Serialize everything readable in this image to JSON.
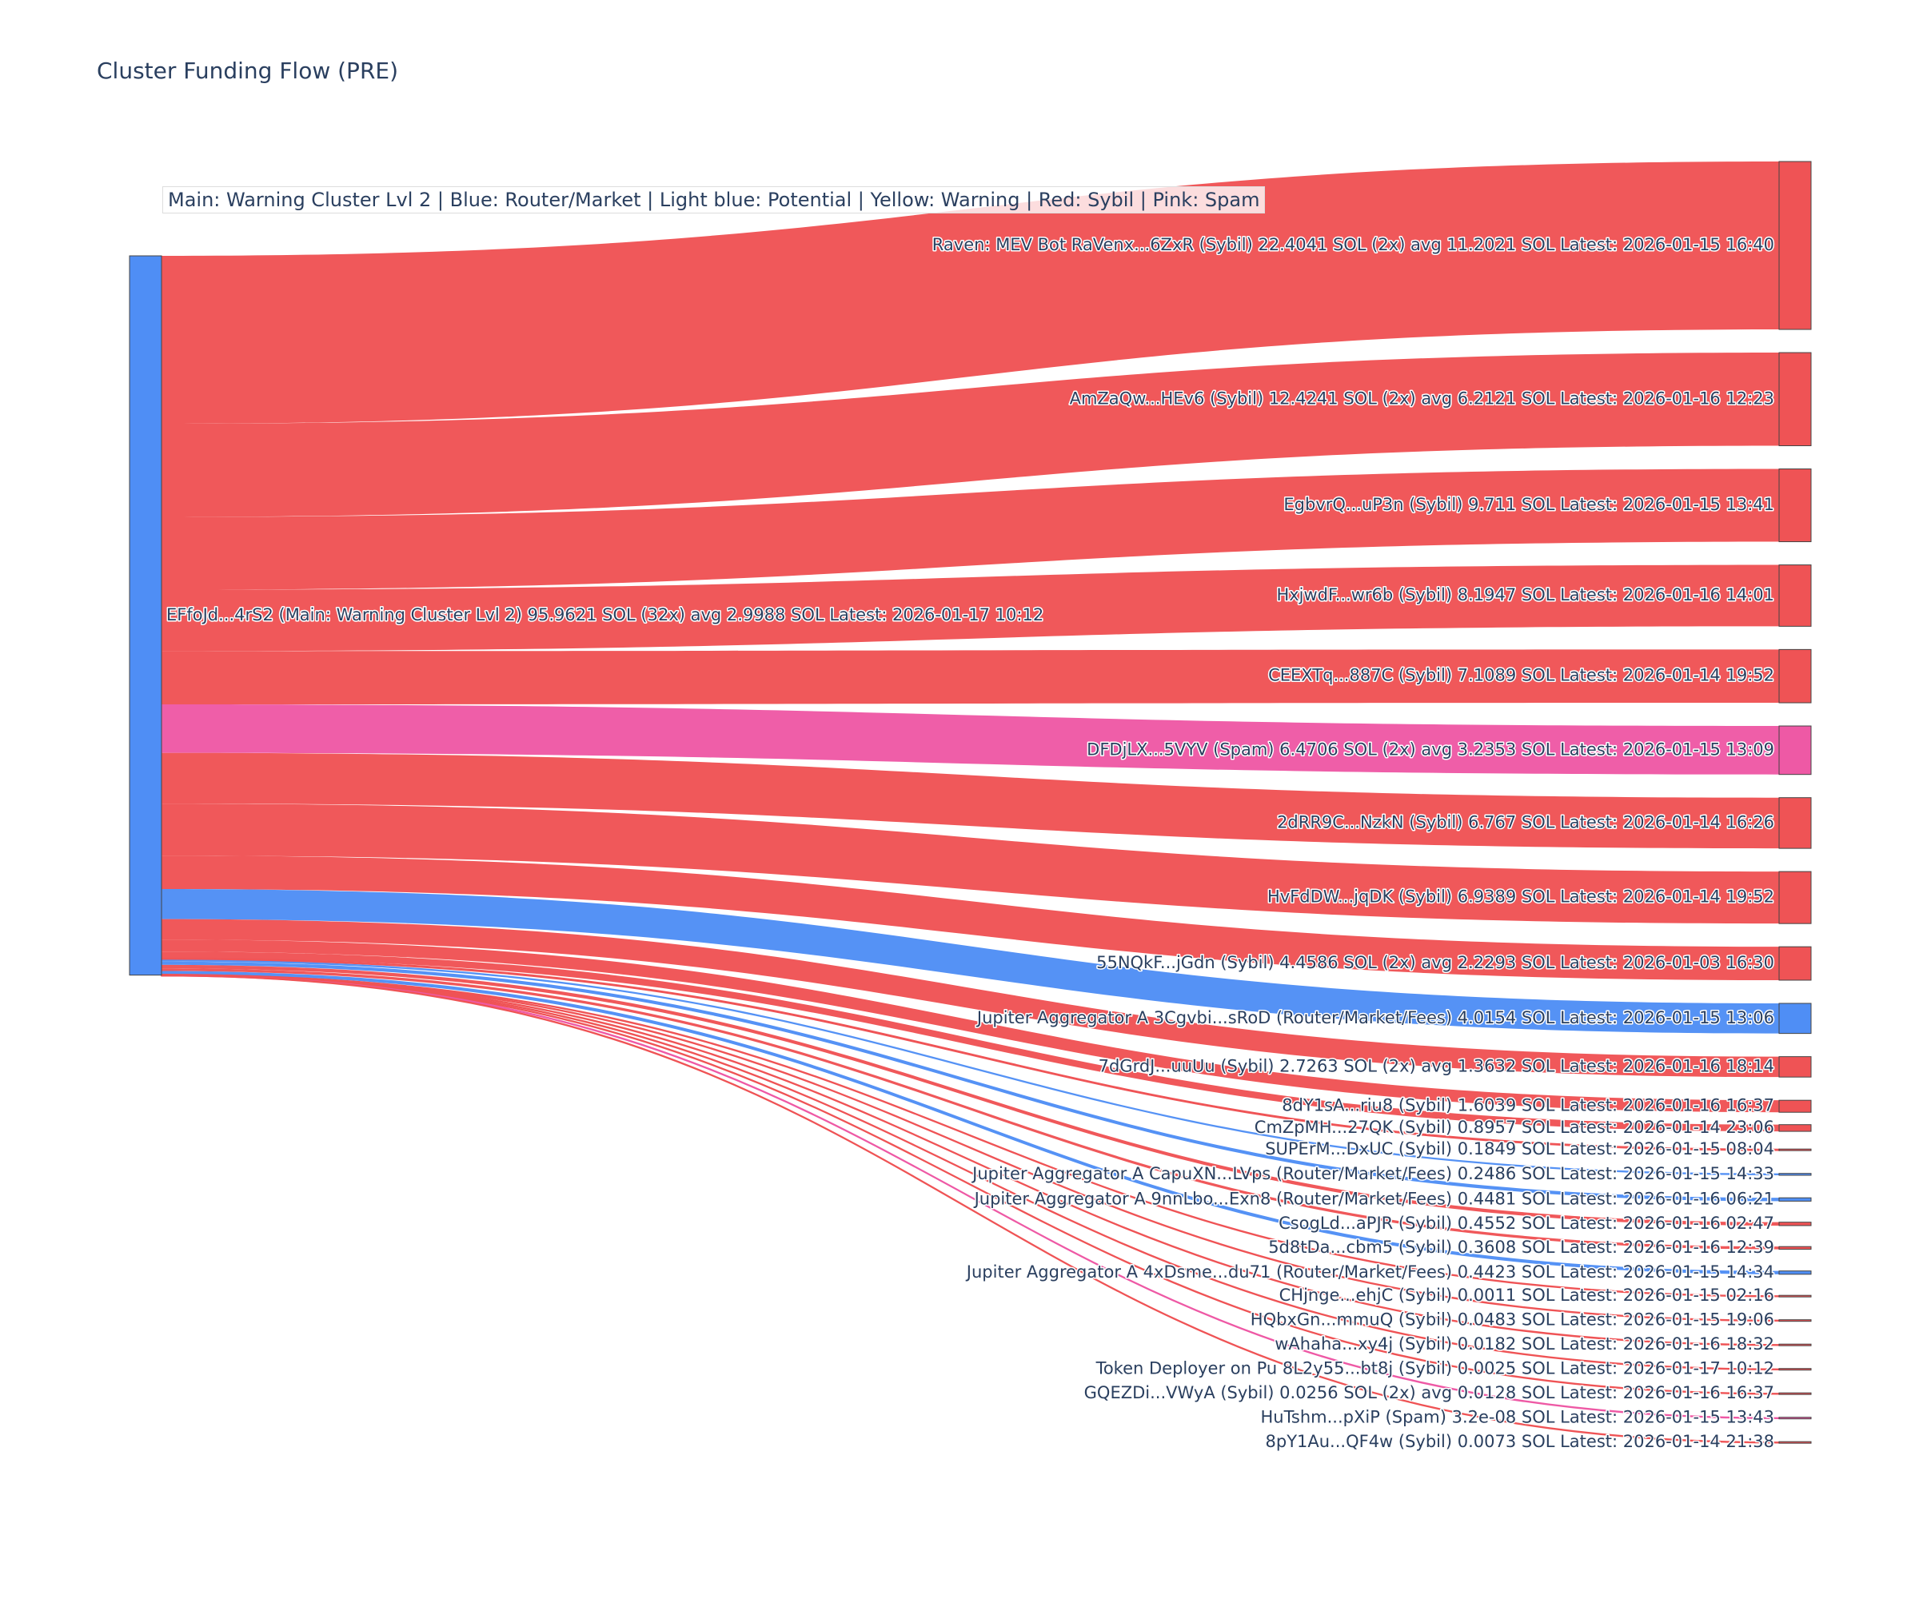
{
  "chart_data": {
    "type": "sankey",
    "title": "Cluster Funding Flow (PRE)",
    "annotation": "Main: Warning Cluster Lvl 2  |  Blue: Router/Market | Light blue: Potential | Yellow: Warning | Red: Sybil | Pink: Spam",
    "colors": {
      "router": "#4f8ef5",
      "sybil": "#ef5355",
      "spam": "#ee59a5",
      "node_border": "#444444"
    },
    "source": {
      "id": "source",
      "label": "EFfoJd...4rS2 (Main: Warning Cluster Lvl 2) 95.9621 SOL (32x) avg 2.9988 SOL Latest: 2026-01-17 10:12",
      "category": "router",
      "value": 95.9621
    },
    "targets": [
      {
        "label": "Raven: MEV Bot RaVenx...6ZxR (Sybil) 22.4041 SOL (2x) avg 11.2021 SOL Latest: 2026-01-15 16:40",
        "value": 22.4041,
        "category": "sybil"
      },
      {
        "label": "AmZaQw...HEv6 (Sybil) 12.4241 SOL (2x) avg 6.2121 SOL Latest: 2026-01-16 12:23",
        "value": 12.4241,
        "category": "sybil"
      },
      {
        "label": "EgbvrQ...uP3n (Sybil) 9.711 SOL Latest: 2026-01-15 13:41",
        "value": 9.711,
        "category": "sybil"
      },
      {
        "label": "HxjwdF...wr6b (Sybil) 8.1947 SOL Latest: 2026-01-16 14:01",
        "value": 8.1947,
        "category": "sybil"
      },
      {
        "label": "CEEXTq...887C (Sybil) 7.1089 SOL Latest: 2026-01-14 19:52",
        "value": 7.1089,
        "category": "sybil"
      },
      {
        "label": "DFDjLX...5VYV (Spam) 6.4706 SOL (2x) avg 3.2353 SOL Latest: 2026-01-15 13:09",
        "value": 6.4706,
        "category": "spam"
      },
      {
        "label": "2dRR9C...NzkN (Sybil) 6.767 SOL Latest: 2026-01-14 16:26",
        "value": 6.767,
        "category": "sybil"
      },
      {
        "label": "HvFdDW...jqDK (Sybil) 6.9389 SOL Latest: 2026-01-14 19:52",
        "value": 6.9389,
        "category": "sybil"
      },
      {
        "label": "55NQkF...jGdn (Sybil) 4.4586 SOL (2x) avg 2.2293 SOL Latest: 2026-01-03 16:30",
        "value": 4.4586,
        "category": "sybil"
      },
      {
        "label": "Jupiter Aggregator A 3Cgvbi...sRoD (Router/Market/Fees) 4.0154 SOL Latest: 2026-01-15 13:06",
        "value": 4.0154,
        "category": "router"
      },
      {
        "label": "7dGrdJ...uuUu (Sybil) 2.7263 SOL (2x) avg 1.3632 SOL Latest: 2026-01-16 18:14",
        "value": 2.7263,
        "category": "sybil"
      },
      {
        "label": "8dY1sA...riu8 (Sybil) 1.6039 SOL Latest: 2026-01-16 16:37",
        "value": 1.6039,
        "category": "sybil"
      },
      {
        "label": "CmZpMH...27QK (Sybil) 0.8957 SOL Latest: 2026-01-14 23:06",
        "value": 0.8957,
        "category": "sybil"
      },
      {
        "label": "SUPErM...DxUC (Sybil) 0.1849 SOL Latest: 2026-01-15 08:04",
        "value": 0.1849,
        "category": "sybil"
      },
      {
        "label": "Jupiter Aggregator A CapuXN...LVps (Router/Market/Fees) 0.2486 SOL Latest: 2026-01-15 14:33",
        "value": 0.2486,
        "category": "router"
      },
      {
        "label": "Jupiter Aggregator A 9nnLbo...Exn8 (Router/Market/Fees) 0.4481 SOL Latest: 2026-01-16 06:21",
        "value": 0.4481,
        "category": "router"
      },
      {
        "label": "CsogLd...aPJR (Sybil) 0.4552 SOL Latest: 2026-01-16 02:47",
        "value": 0.4552,
        "category": "sybil"
      },
      {
        "label": "5d8tDa...cbm5 (Sybil) 0.3608 SOL Latest: 2026-01-16 12:39",
        "value": 0.3608,
        "category": "sybil"
      },
      {
        "label": "Jupiter Aggregator A 4xDsme...du71 (Router/Market/Fees) 0.4423 SOL Latest: 2026-01-15 14:34",
        "value": 0.4423,
        "category": "router"
      },
      {
        "label": "CHjnge...ehjC (Sybil) 0.0011 SOL Latest: 2026-01-15 02:16",
        "value": 0.0011,
        "category": "sybil"
      },
      {
        "label": "HQbxGn...mmuQ (Sybil) 0.0483 SOL Latest: 2026-01-15 19:06",
        "value": 0.0483,
        "category": "sybil"
      },
      {
        "label": "wAhaha...xy4j (Sybil) 0.0182 SOL Latest: 2026-01-16 18:32",
        "value": 0.0182,
        "category": "sybil"
      },
      {
        "label": "Token Deployer on Pu 8L2y55...bt8j (Sybil) 0.0025 SOL Latest: 2026-01-17 10:12",
        "value": 0.0025,
        "category": "sybil"
      },
      {
        "label": "GQEZDi...VWyA (Sybil) 0.0256 SOL (2x) avg 0.0128 SOL Latest: 2026-01-16 16:37",
        "value": 0.0256,
        "category": "sybil"
      },
      {
        "label": "HuTshm...pXiP (Spam) 3.2e-08 SOL Latest: 2026-01-15 13:43",
        "value": 3.2e-08,
        "category": "spam"
      },
      {
        "label": "8pY1Au...QF4w (Sybil) 0.0073 SOL Latest: 2026-01-14 21:38",
        "value": 0.0073,
        "category": "sybil"
      }
    ]
  }
}
